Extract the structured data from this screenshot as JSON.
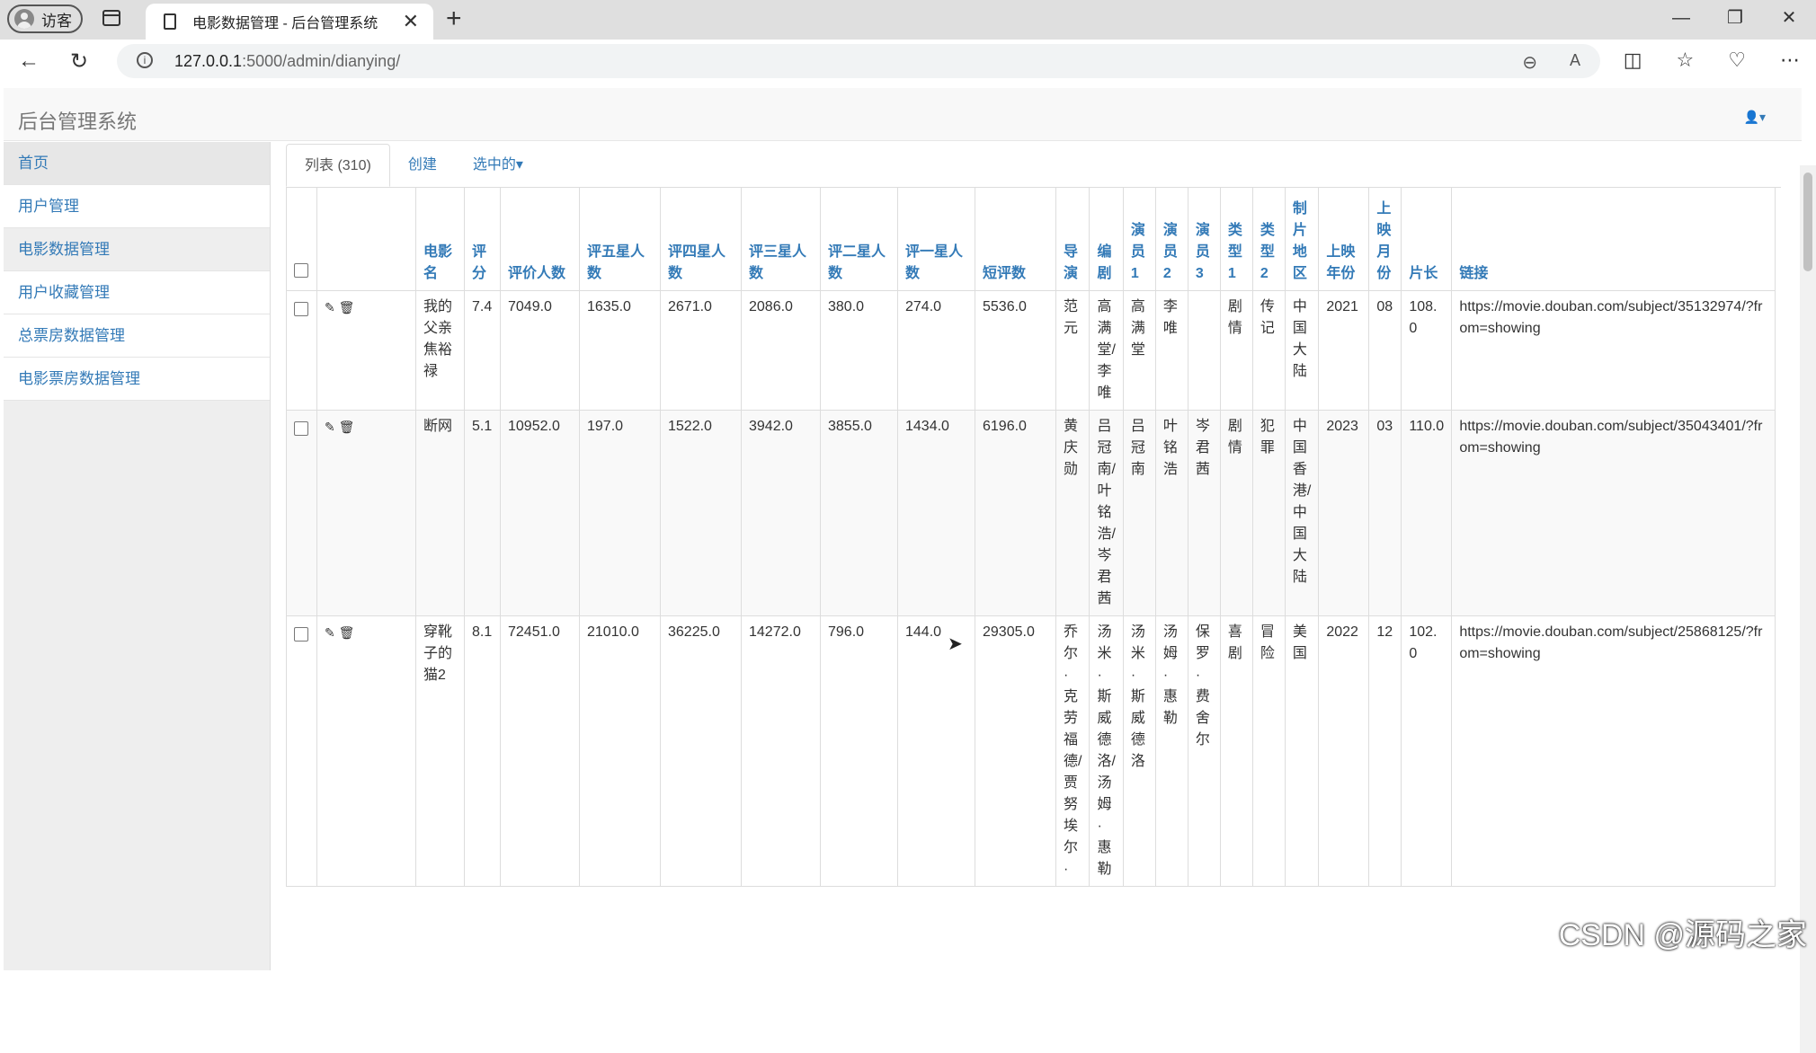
{
  "browser": {
    "profile_label": "访客",
    "tab_title": "电影数据管理 - 后台管理系统",
    "url_host": "127.0.0.1",
    "url_path": ":5000/admin/dianying/"
  },
  "app": {
    "brand": "后台管理系统"
  },
  "sidebar": {
    "items": [
      {
        "label": "首页"
      },
      {
        "label": "用户管理"
      },
      {
        "label": "电影数据管理"
      },
      {
        "label": "用户收藏管理"
      },
      {
        "label": "总票房数据管理"
      },
      {
        "label": "电影票房数据管理"
      }
    ]
  },
  "tabs": {
    "list": "列表 (310)",
    "create": "创建",
    "selected": "选中的▾"
  },
  "table": {
    "headers": [
      "电影名",
      "评分",
      "评价人数",
      "评五星人数",
      "评四星人数",
      "评三星人数",
      "评二星人数",
      "评一星人数",
      "短评数",
      "导演",
      "编剧",
      "演员1",
      "演员2",
      "演员3",
      "类型1",
      "类型2",
      "制片地区",
      "上映年份",
      "上映月份",
      "片长",
      "链接"
    ],
    "rows": [
      [
        "我的父亲焦裕禄",
        "7.4",
        "7049.0",
        "1635.0",
        "2671.0",
        "2086.0",
        "380.0",
        "274.0",
        "5536.0",
        "范元",
        "高满堂/李唯",
        "高满堂",
        "李唯",
        "",
        "剧情",
        "传记",
        "中国大陆",
        "2021",
        "08",
        "108.0",
        "https://movie.douban.com/subject/35132974/?from=showing"
      ],
      [
        "断网",
        "5.1",
        "10952.0",
        "197.0",
        "1522.0",
        "3942.0",
        "3855.0",
        "1434.0",
        "6196.0",
        "黄庆勋",
        "吕冠南/叶铭浩/岑君茜",
        "吕冠南",
        "叶铭浩",
        "岑君茜",
        "剧情",
        "犯罪",
        "中国香港/中国大陆",
        "2023",
        "03",
        "110.0",
        "https://movie.douban.com/subject/35043401/?from=showing"
      ],
      [
        "穿靴子的猫2",
        "8.1",
        "72451.0",
        "21010.0",
        "36225.0",
        "14272.0",
        "796.0",
        "144.0",
        "29305.0",
        "乔尔·克劳福德/贾努埃尔·",
        "汤米·斯威德洛/汤姆·惠勒",
        "汤米·斯威德洛",
        "汤姆·惠勒",
        "保罗·费舍尔",
        "喜剧",
        "冒险",
        "美国",
        "2022",
        "12",
        "102.0",
        "https://movie.douban.com/subject/25868125/?from=showing"
      ]
    ]
  },
  "watermark": "CSDN @源码之家"
}
